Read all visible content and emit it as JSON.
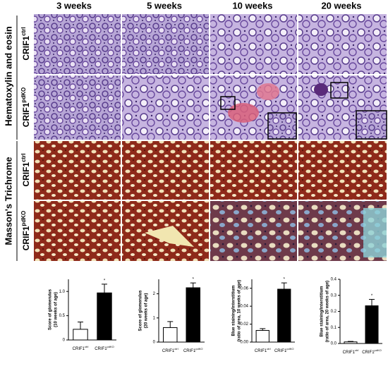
{
  "columns": [
    "3 weeks",
    "5 weeks",
    "10 weeks",
    "20 weeks"
  ],
  "stains": [
    "Hematoxylin and eosin",
    "Masson's Trichrome"
  ],
  "rows": [
    {
      "text": "CRIF1",
      "sup": "ctrl"
    },
    {
      "text": "CRIF1",
      "sup": "pdKO"
    },
    {
      "text": "CRIF1",
      "sup": "ctrl"
    },
    {
      "text": "CRIF1",
      "sup": "pdKO"
    }
  ],
  "chart_data": [
    {
      "type": "bar",
      "ylabel": [
        "Score of glomerulus",
        "(10 weeks of age)"
      ],
      "categories": [
        "CRIF1",
        "CRIF1"
      ],
      "category_sup": [
        "ctrl",
        "pdKO"
      ],
      "values": [
        0.22,
        0.97
      ],
      "errors": [
        0.15,
        0.18
      ],
      "colors": [
        "#ffffff",
        "#000000"
      ],
      "annotation": "*",
      "ylim": [
        0,
        1.25
      ],
      "yticks": [
        0,
        0.5,
        {
          "value": 1,
          "label": "1.0"
        }
      ]
    },
    {
      "type": "bar",
      "ylabel": [
        "Score of glomerulus",
        "(20 weeks of age)"
      ],
      "categories": [
        "CRIF1",
        "CRIF1"
      ],
      "category_sup": [
        "ctrl",
        "pdKO"
      ],
      "values": [
        0.6,
        2.25
      ],
      "errors": [
        0.25,
        0.2
      ],
      "colors": [
        "#ffffff",
        "#000000"
      ],
      "annotation": "*",
      "ylim": [
        0,
        2.6
      ],
      "yticks": [
        0,
        1,
        2
      ]
    },
    {
      "type": "bar",
      "ylabel": [
        "Blue staining/interstitium",
        "(ratio of area, 10 weeks of age)"
      ],
      "categories": [
        "CRIF1",
        "CRIF1"
      ],
      "category_sup": [
        "ctrl",
        "pdKO"
      ],
      "values": [
        0.013,
        0.059
      ],
      "errors": [
        0.002,
        0.007
      ],
      "colors": [
        "#ffffff",
        "#000000"
      ],
      "annotation": "*",
      "ylim": [
        0,
        0.07
      ],
      "yticks": [
        {
          "value": 0,
          "label": "0.00"
        },
        0.02,
        0.04,
        0.06
      ]
    },
    {
      "type": "bar",
      "ylabel": [
        "Blue staining/interstitium",
        "(ratio of area, 20 weeks of age)"
      ],
      "categories": [
        "CRIF1",
        "CRIF1"
      ],
      "category_sup": [
        "ctrl",
        "pdKO"
      ],
      "values": [
        0.01,
        0.235
      ],
      "errors": [
        0.003,
        0.04
      ],
      "colors": [
        "#ffffff",
        "#000000"
      ],
      "annotation": "*",
      "ylim": [
        0,
        0.4
      ],
      "yticks": [
        {
          "value": 0,
          "label": "0.0"
        },
        0.1,
        0.2,
        0.3,
        0.4
      ]
    }
  ]
}
